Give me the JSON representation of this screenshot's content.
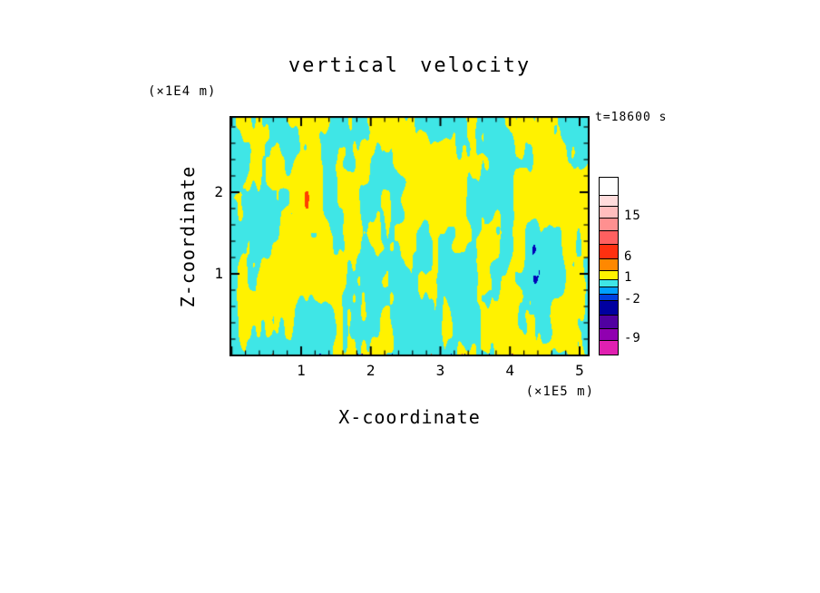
{
  "title": "vertical velocity",
  "time_label": "t=18600 s",
  "axes": {
    "x": {
      "label": "X-coordinate",
      "unit": "(×1E5 m)",
      "ticks": [
        1,
        2,
        3,
        4,
        5
      ]
    },
    "z": {
      "label": "Z-coordinate",
      "unit": "(×1E4 m)",
      "ticks": [
        1,
        2
      ]
    }
  },
  "chart_data": {
    "type": "heatmap",
    "title": "vertical velocity",
    "xlabel": "X-coordinate (×1E5 m)",
    "ylabel": "Z-coordinate (×1E4 m)",
    "x_range": [
      0,
      5.17
    ],
    "z_range": [
      0,
      2.95
    ],
    "time_annotation": "t=18600 s",
    "description": "Turbulent convective vertical-velocity field: interleaved narrow vertical plumes of positive (yellow, ~1 to 6) and negative (cyan, ~-2 to 1) velocity, with sparse strong up/downdraft specks near the bottom boundary.",
    "field_colors": {
      "positive": "#FFF200",
      "negative": "#3FE6E6",
      "strong_positive": "#FF4000",
      "strong_negative": "#0000B8",
      "extreme_negative": "#D818B0"
    },
    "noise": {
      "threshold": 0,
      "octaves": [
        {
          "fx": 0.075,
          "fy": 0.022,
          "amp": 1.0,
          "seed": 11
        },
        {
          "fx": 0.035,
          "fy": 0.012,
          "amp": 0.8,
          "seed": 23
        },
        {
          "fx": 0.19,
          "fy": 0.055,
          "amp": 0.45,
          "seed": 37
        },
        {
          "fx": 0.011,
          "fy": 0.03,
          "amp": 0.3,
          "seed": 53
        }
      ]
    },
    "colorbar": {
      "levels": [
        -9,
        -2,
        1,
        6,
        15
      ],
      "labels": [
        {
          "value": "15",
          "frac": 0.225
        },
        {
          "value": "6",
          "frac": 0.455
        },
        {
          "value": "1",
          "frac": 0.575
        },
        {
          "value": "-2",
          "frac": 0.695
        },
        {
          "value": "-9",
          "frac": 0.92
        }
      ],
      "segments": [
        {
          "color": "#FFFFFF",
          "to": 0.095
        },
        {
          "color": "#FFDCDC",
          "to": 0.16
        },
        {
          "color": "#FFBEBE",
          "to": 0.225
        },
        {
          "color": "#FF9090",
          "to": 0.3
        },
        {
          "color": "#FF6060",
          "to": 0.375
        },
        {
          "color": "#FF3010",
          "to": 0.455
        },
        {
          "color": "#FF8800",
          "to": 0.525
        },
        {
          "color": "#FFF200",
          "to": 0.575
        },
        {
          "color": "#3FE6E6",
          "to": 0.615
        },
        {
          "color": "#00A0FF",
          "to": 0.655
        },
        {
          "color": "#0040E0",
          "to": 0.695
        },
        {
          "color": "#0000A0",
          "to": 0.775
        },
        {
          "color": "#5000A0",
          "to": 0.85
        },
        {
          "color": "#9000B0",
          "to": 0.92
        },
        {
          "color": "#E020B0",
          "to": 1.0
        }
      ]
    }
  }
}
